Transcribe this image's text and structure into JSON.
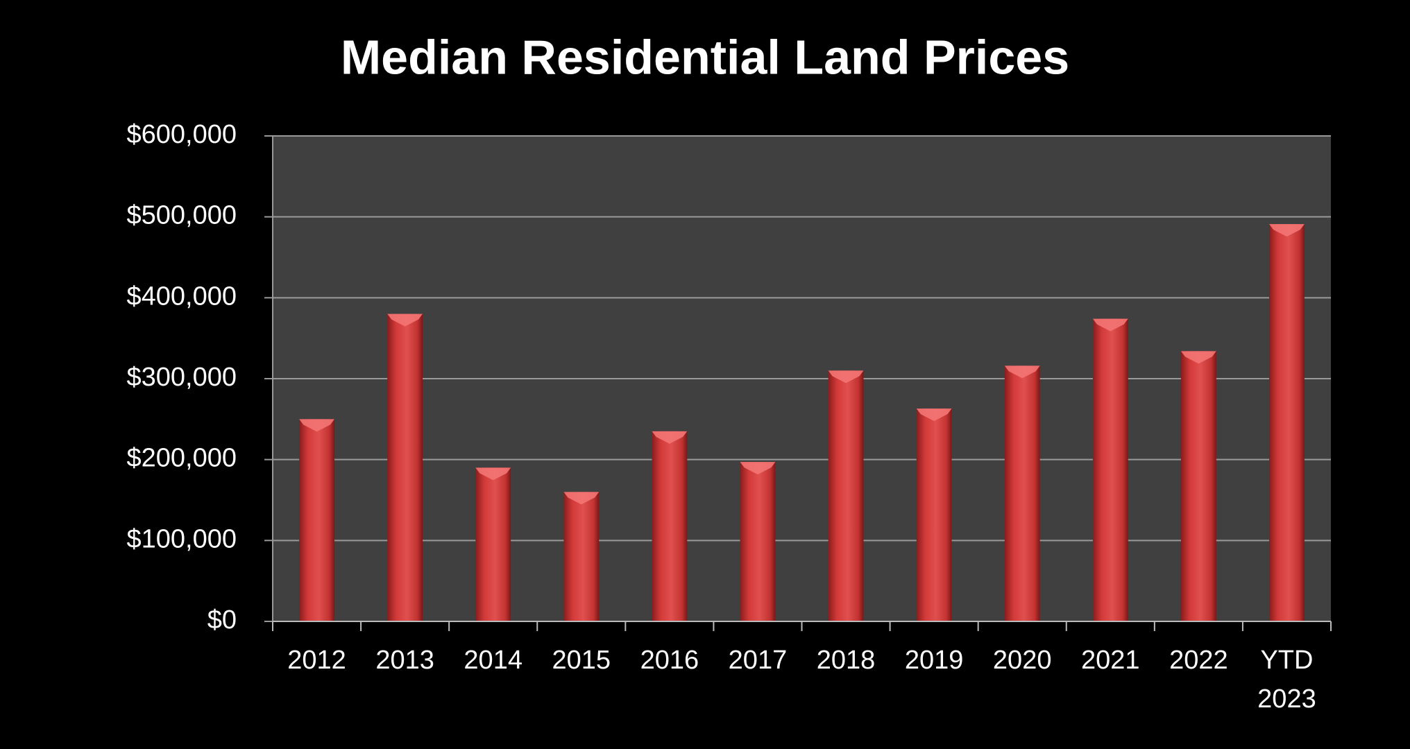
{
  "chart_data": {
    "type": "bar",
    "title": "Median Residential Land Prices",
    "categories": [
      "2012",
      "2013",
      "2014",
      "2015",
      "2016",
      "2017",
      "2018",
      "2019",
      "2020",
      "2021",
      "2022",
      "YTD 2023"
    ],
    "values": [
      250000,
      380000,
      190000,
      160000,
      235000,
      197000,
      310000,
      263000,
      316000,
      374000,
      334000,
      491000
    ],
    "color": "#d9403f",
    "ylim": [
      0,
      600000
    ],
    "yticks": [
      {
        "value": 0,
        "label": "$0"
      },
      {
        "value": 100000,
        "label": "$100,000"
      },
      {
        "value": 200000,
        "label": "$200,000"
      },
      {
        "value": 300000,
        "label": "$300,000"
      },
      {
        "value": 400000,
        "label": "$400,000"
      },
      {
        "value": 500000,
        "label": "$500,000"
      },
      {
        "value": 600000,
        "label": "$600,000"
      }
    ],
    "grid": true
  }
}
